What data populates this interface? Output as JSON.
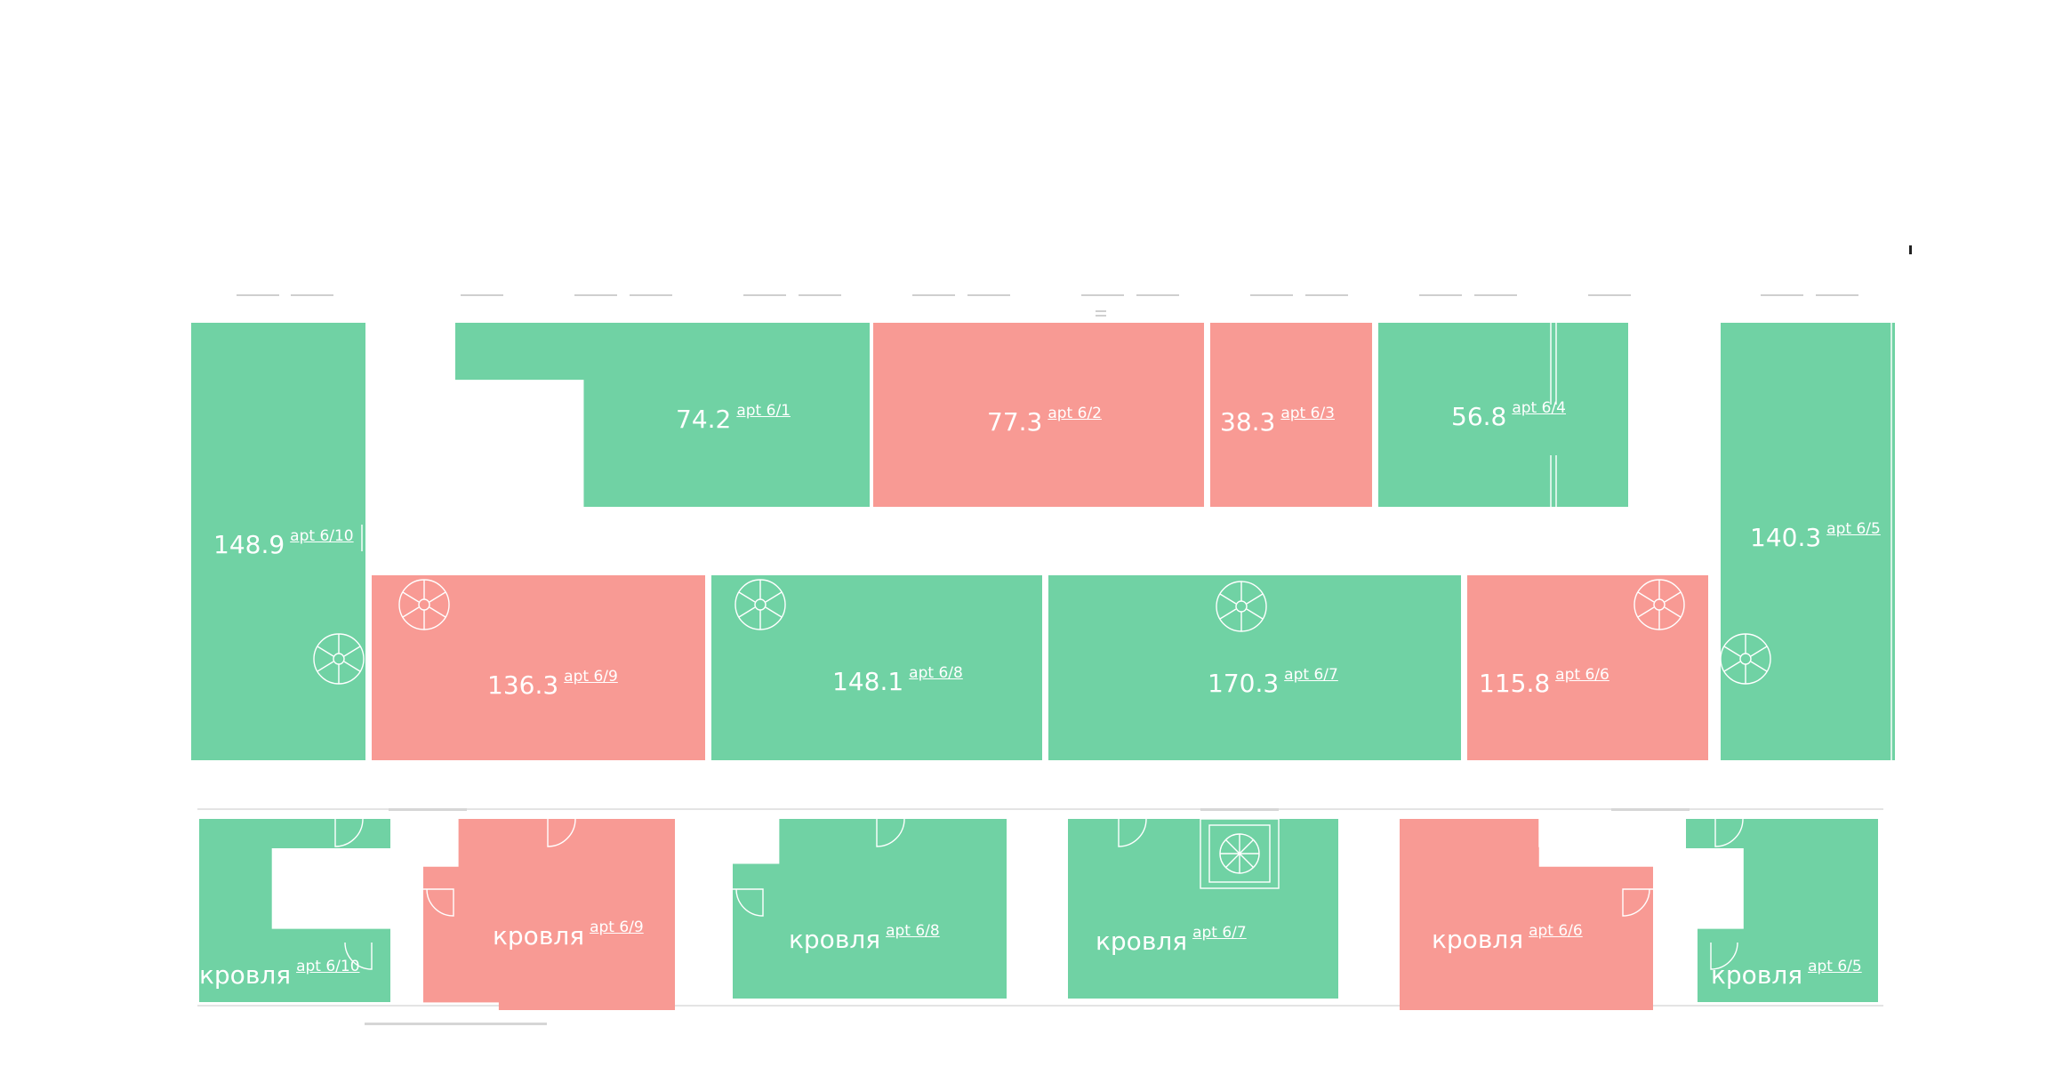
{
  "colors": {
    "available": "#70d2a4",
    "sold": "#f89a94",
    "lines": "#ffffff"
  },
  "units": [
    {
      "id": "apt-6-1",
      "area": "74.2",
      "apt": "apt 6/1",
      "status": "available"
    },
    {
      "id": "apt-6-2",
      "area": "77.3",
      "apt": "apt 6/2",
      "status": "sold"
    },
    {
      "id": "apt-6-3",
      "area": "38.3",
      "apt": "apt 6/3",
      "status": "sold"
    },
    {
      "id": "apt-6-4",
      "area": "56.8",
      "apt": "apt 6/4",
      "status": "available"
    },
    {
      "id": "apt-6-5",
      "area": "140.3",
      "apt": "apt 6/5",
      "status": "available"
    },
    {
      "id": "apt-6-6",
      "area": "115.8",
      "apt": "apt 6/6",
      "status": "sold"
    },
    {
      "id": "apt-6-7",
      "area": "170.3",
      "apt": "apt 6/7",
      "status": "available"
    },
    {
      "id": "apt-6-8",
      "area": "148.1",
      "apt": "apt 6/8",
      "status": "available"
    },
    {
      "id": "apt-6-9",
      "area": "136.3",
      "apt": "apt 6/9",
      "status": "sold"
    },
    {
      "id": "apt-6-10",
      "area": "148.9",
      "apt": "apt 6/10",
      "status": "available"
    }
  ],
  "roofs": [
    {
      "id": "roof-6-10",
      "label": "кровля",
      "apt": "apt 6/10",
      "status": "available"
    },
    {
      "id": "roof-6-9",
      "label": "кровля",
      "apt": "apt 6/9",
      "status": "sold"
    },
    {
      "id": "roof-6-8",
      "label": "кровля",
      "apt": "apt 6/8",
      "status": "available"
    },
    {
      "id": "roof-6-7",
      "label": "кровля",
      "apt": "apt 6/7",
      "status": "available"
    },
    {
      "id": "roof-6-6",
      "label": "кровля",
      "apt": "apt 6/6",
      "status": "sold"
    },
    {
      "id": "roof-6-5",
      "label": "кровля",
      "apt": "apt 6/5",
      "status": "available"
    }
  ]
}
